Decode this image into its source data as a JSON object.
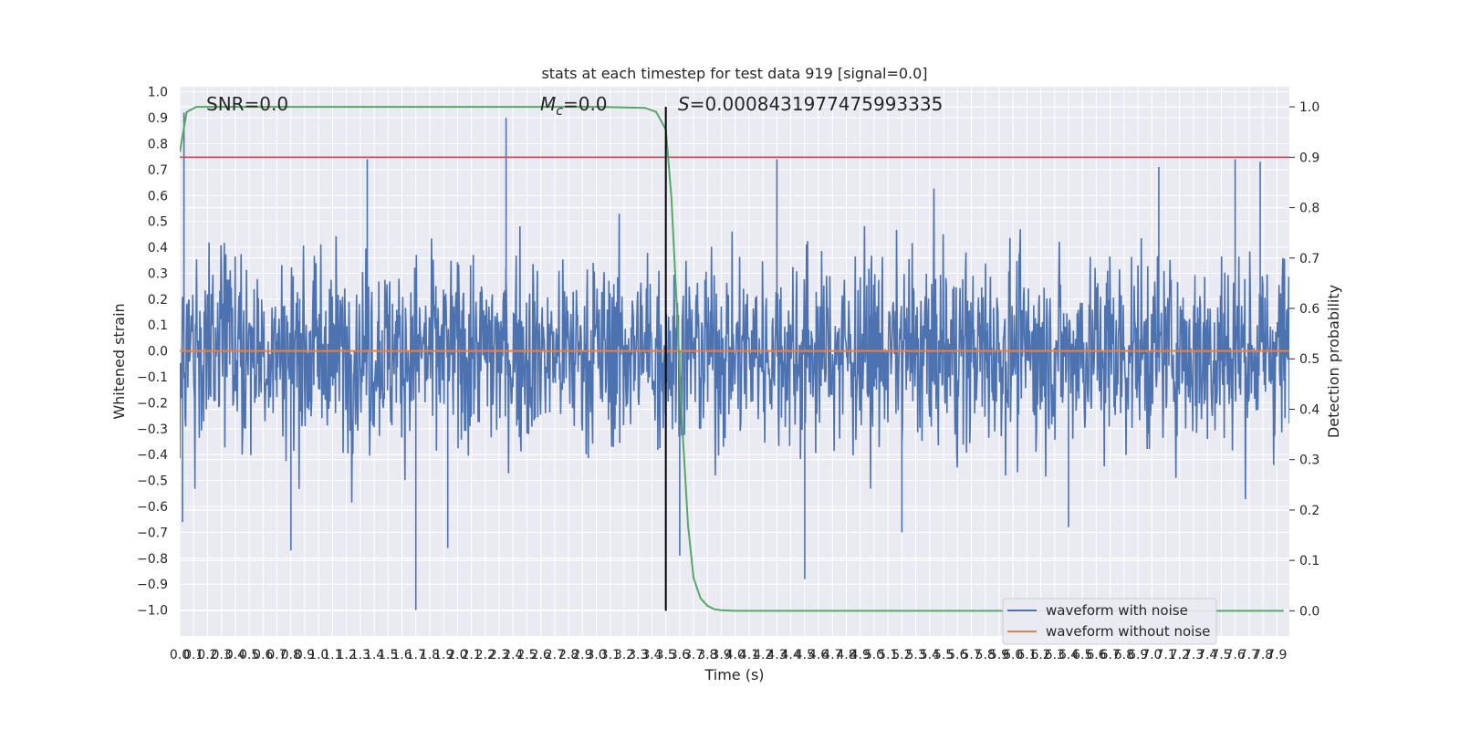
{
  "chart_data": {
    "type": "line",
    "title": "stats at each timestep for test data 919 [signal=0.0]",
    "xlabel": "Time (s)",
    "ylabel": "Whitened strain",
    "y2label": "Detection probability",
    "xlim": [
      0.0,
      7.99
    ],
    "ylim": [
      -1.1,
      1.02
    ],
    "y2lim": [
      -0.05,
      1.04
    ],
    "grid": true,
    "legend_position": "lower-right",
    "annotations": {
      "snr": "SNR=0.0",
      "mc_prefix": "M",
      "mc_sub": "c",
      "mc_value": "=0.0",
      "s_prefix": "S",
      "s_value": "=0.0008431977475993335"
    },
    "threshold_y2": 0.9,
    "vertical_line_x": 3.5,
    "series": [
      {
        "name": "waveform with noise",
        "axis": "left",
        "style": "noise",
        "peaks": [
          {
            "x": 0.03,
            "y": 0.92
          },
          {
            "x": 1.35,
            "y": 0.74
          },
          {
            "x": 2.35,
            "y": 0.9
          },
          {
            "x": 4.3,
            "y": 0.74
          },
          {
            "x": 7.05,
            "y": 0.71
          },
          {
            "x": 7.6,
            "y": 0.74
          },
          {
            "x": 7.78,
            "y": 0.73
          },
          {
            "x": 1.7,
            "y": -1.0
          },
          {
            "x": 0.8,
            "y": -0.77
          },
          {
            "x": 1.93,
            "y": -0.76
          },
          {
            "x": 3.6,
            "y": -0.79
          },
          {
            "x": 4.5,
            "y": -0.88
          },
          {
            "x": 5.2,
            "y": -0.7
          },
          {
            "x": 6.4,
            "y": -0.68
          },
          {
            "x": 0.02,
            "y": -0.66
          }
        ],
        "typical_amplitude": 0.3
      },
      {
        "name": "waveform without noise",
        "axis": "left",
        "x": [
          0.0,
          7.99
        ],
        "y": [
          0.0,
          0.0
        ]
      },
      {
        "name": "",
        "axis": "right",
        "x": [
          0.0,
          0.05,
          0.12,
          0.3,
          1.0,
          2.0,
          3.0,
          3.35,
          3.43,
          3.5,
          3.54,
          3.58,
          3.62,
          3.66,
          3.7,
          3.75,
          3.8,
          3.85,
          3.9,
          4.0,
          5.0,
          6.0,
          7.0,
          7.95
        ],
        "y": [
          0.91,
          0.99,
          1.0,
          1.0,
          1.0,
          1.0,
          1.0,
          0.998,
          0.99,
          0.955,
          0.82,
          0.6,
          0.36,
          0.17,
          0.065,
          0.025,
          0.01,
          0.003,
          0.001,
          0.0,
          0.0,
          0.0,
          0.0,
          0.0
        ]
      }
    ],
    "colors": {
      "noise": "#4c72b0",
      "clean": "#dd8452",
      "prob": "#55a868",
      "threshold": "#c44e52",
      "vline": "#000000",
      "plot_bg": "#eaeaf2",
      "grid": "#ffffff"
    }
  }
}
